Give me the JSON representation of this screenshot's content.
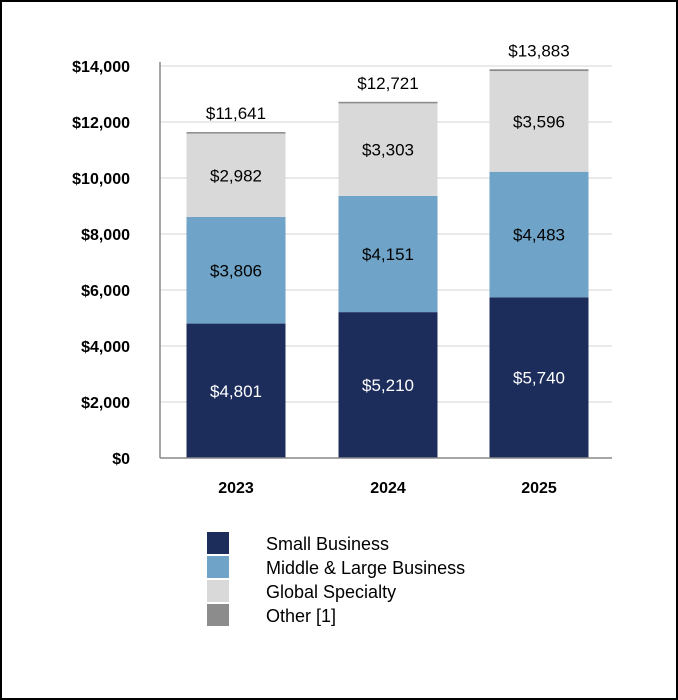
{
  "chart_data": {
    "type": "bar",
    "stacked": true,
    "title": "",
    "xlabel": "",
    "ylabel": "",
    "categories": [
      "2023",
      "2024",
      "2025"
    ],
    "series": [
      {
        "name": "Small Business",
        "values": [
          4801,
          5210,
          5740
        ],
        "labels": [
          "$4,801",
          "$5,210",
          "$5,740"
        ],
        "color": "#1c2d5c",
        "label_color": "#ffffff"
      },
      {
        "name": "Middle & Large Business",
        "values": [
          3806,
          4151,
          4483
        ],
        "labels": [
          "$3,806",
          "$4,151",
          "$4,483"
        ],
        "color": "#6fa3c7",
        "label_color": "#000000"
      },
      {
        "name": "Global Specialty",
        "values": [
          2982,
          3303,
          3596
        ],
        "labels": [
          "$2,982",
          "$3,303",
          "$3,596"
        ],
        "color": "#d9d9d9",
        "label_color": "#000000"
      },
      {
        "name": "Other [1]",
        "values": [
          52,
          57,
          64
        ],
        "color": "#8c8c8c"
      }
    ],
    "totals": [
      "$11,641",
      "$12,721",
      "$13,883"
    ],
    "ylim": [
      0,
      14000
    ],
    "yticks": [
      0,
      2000,
      4000,
      6000,
      8000,
      10000,
      12000,
      14000
    ],
    "ytick_labels": [
      "$0",
      "$2,000",
      "$4,000",
      "$6,000",
      "$8,000",
      "$10,000",
      "$12,000",
      "$14,000"
    ],
    "grid": true,
    "legend": "bottom"
  }
}
